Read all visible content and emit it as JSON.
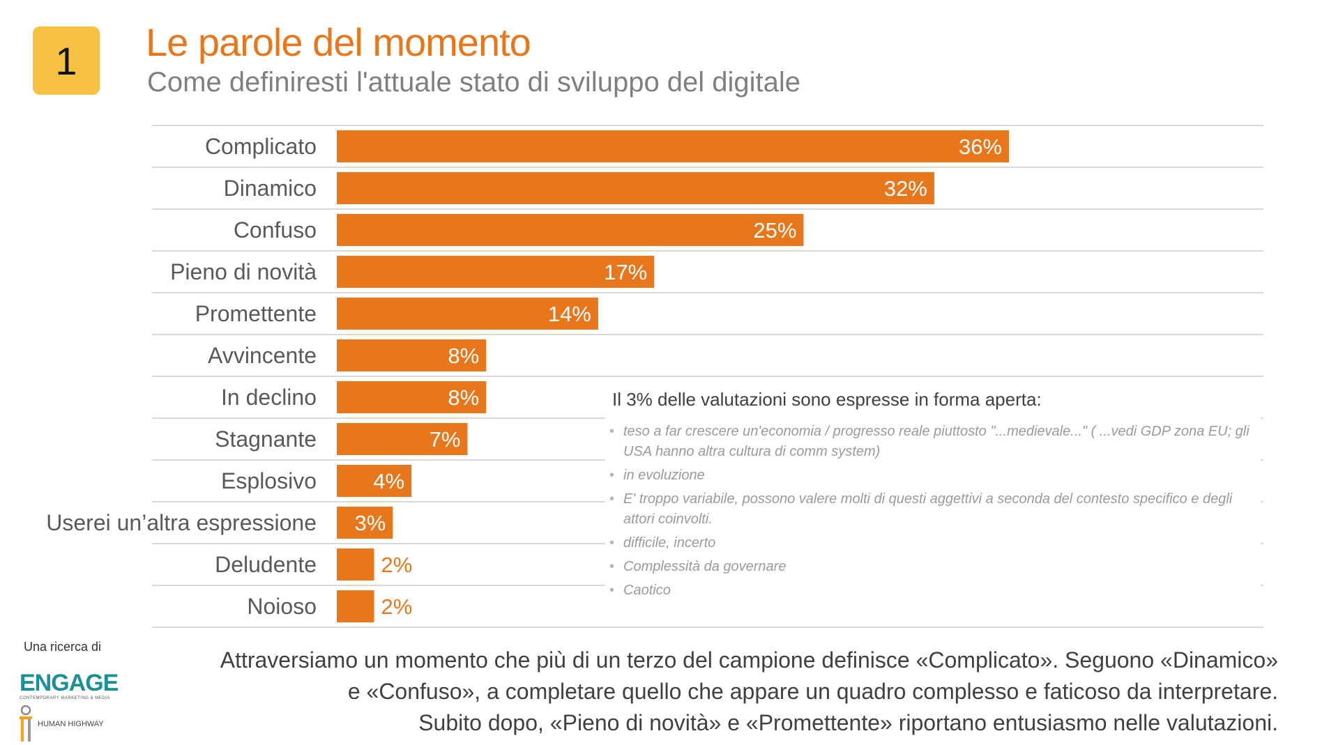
{
  "slide": {
    "number": "1",
    "title": "Le parole del momento",
    "subtitle": "Come definiresti l'attuale stato di sviluppo del digitale"
  },
  "chart_data": {
    "type": "bar",
    "orientation": "horizontal",
    "categories": [
      "Complicato",
      "Dinamico",
      "Confuso",
      "Pieno di novità",
      "Promettente",
      "Avvincente",
      "In declino",
      "Stagnante",
      "Esplosivo",
      "Userei un’altra espressione",
      "Deludente",
      "Noioso"
    ],
    "values": [
      36,
      32,
      25,
      17,
      14,
      8,
      8,
      7,
      4,
      3,
      2,
      2
    ],
    "value_labels": [
      "36%",
      "32%",
      "25%",
      "17%",
      "14%",
      "8%",
      "8%",
      "7%",
      "4%",
      "3%",
      "2%",
      "2%"
    ],
    "unit": "%",
    "xlim": [
      0,
      36
    ],
    "grid": "horizontal row separators",
    "bar_color": "#e8761b",
    "inside_label_color": "#ffffff",
    "outside_label_color": "#e8761b"
  },
  "open_answers": {
    "title": "Il 3% delle valutazioni sono espresse in forma aperta:",
    "items": [
      "teso a far crescere un'economia / progresso reale piuttosto \"...medievale...\" ( ...vedi GDP zona EU; gli USA hanno altra cultura di comm system)",
      "in evoluzione",
      "E' troppo variabile, possono valere molti di questi aggettivi a seconda del contesto specifico e degli attori coinvolti.",
      "difficile, incerto",
      "Complessità da governare",
      "Caotico"
    ]
  },
  "sponsor": {
    "label": "Una ricerca di",
    "engage_name": "ENGAGE",
    "engage_tagline": "CONTEMPORARY MARKETING & MEDIA",
    "hh_name": "HUMAN HIGHWAY"
  },
  "commentary": {
    "lines": [
      "Attraversiamo un momento che più di un terzo del campione definisce «Complicato». Seguono «Dinamico»",
      "e «Confuso», a completare quello che appare un quadro complesso e faticoso da interpretare.",
      "Subito dopo, «Pieno di novità» e «Promettente» riportano entusiasmo nelle valutazioni."
    ]
  },
  "colors": {
    "accent": "#e8761b",
    "badge": "#f7c142",
    "subtitle": "#7f7f7f",
    "engage_teal": "#1a8f96"
  }
}
